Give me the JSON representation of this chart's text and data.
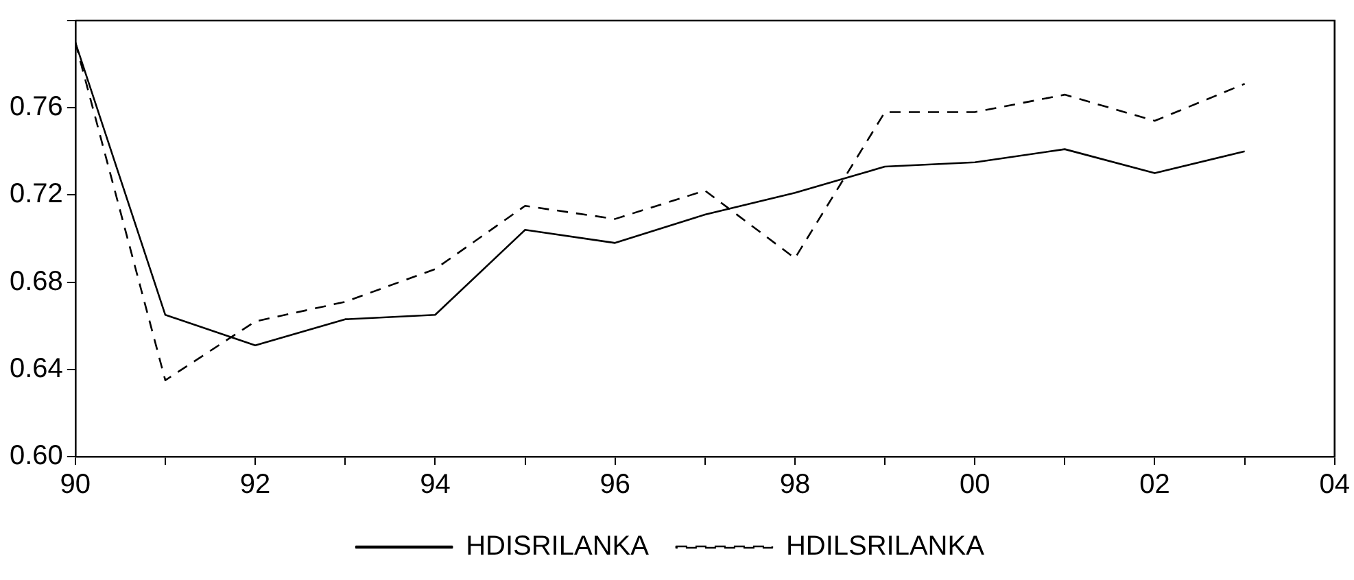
{
  "chart_data": {
    "type": "line",
    "x": [
      1990,
      1991,
      1992,
      1993,
      1994,
      1995,
      1996,
      1997,
      1998,
      1999,
      2000,
      2001,
      2002,
      2003
    ],
    "series": [
      {
        "name": "HDISRILANKA",
        "color": "#000000",
        "line_style": "solid",
        "values": [
          0.79,
          0.665,
          0.651,
          0.663,
          0.665,
          0.704,
          0.698,
          0.711,
          0.721,
          0.733,
          0.735,
          0.741,
          0.73,
          0.74
        ]
      },
      {
        "name": "HDILSRILANKA",
        "color": "#000000",
        "line_style": "dashed",
        "values": [
          0.79,
          0.635,
          0.662,
          0.671,
          0.686,
          0.715,
          0.709,
          0.722,
          0.691,
          0.758,
          0.758,
          0.766,
          0.754,
          0.771
        ]
      }
    ],
    "xlim": [
      1990,
      2004
    ],
    "xticks": [
      {
        "value": 1990,
        "label": "90"
      },
      {
        "value": 1991,
        "label": null
      },
      {
        "value": 1992,
        "label": "92"
      },
      {
        "value": 1993,
        "label": null
      },
      {
        "value": 1994,
        "label": "94"
      },
      {
        "value": 1995,
        "label": null
      },
      {
        "value": 1996,
        "label": "96"
      },
      {
        "value": 1997,
        "label": null
      },
      {
        "value": 1998,
        "label": "98"
      },
      {
        "value": 1999,
        "label": null
      },
      {
        "value": 2000,
        "label": "00"
      },
      {
        "value": 2001,
        "label": null
      },
      {
        "value": 2002,
        "label": "02"
      },
      {
        "value": 2003,
        "label": null
      },
      {
        "value": 2004,
        "label": "04"
      }
    ],
    "ylim": [
      0.6,
      0.8
    ],
    "yticks": [
      {
        "value": 0.6,
        "label": "0.60"
      },
      {
        "value": 0.64,
        "label": "0.64"
      },
      {
        "value": 0.68,
        "label": "0.68"
      },
      {
        "value": 0.72,
        "label": "0.72"
      },
      {
        "value": 0.76,
        "label": "0.76"
      },
      {
        "value": 0.8,
        "label": null
      }
    ],
    "grid": false,
    "legend": "bottom",
    "marker": "none"
  }
}
